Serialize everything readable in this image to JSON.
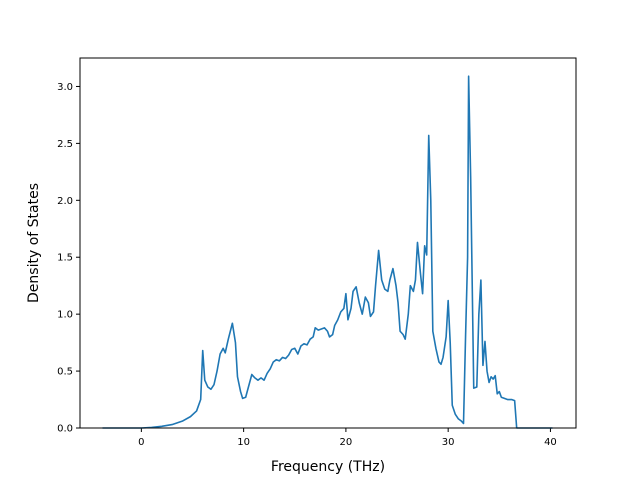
{
  "chart_data": {
    "type": "line",
    "title": "",
    "xlabel": "Frequency (THz)",
    "ylabel": "Density of States",
    "xlim": [
      -6,
      42.5
    ],
    "ylim": [
      0,
      3.25
    ],
    "xticks": [
      0,
      10,
      20,
      30,
      40
    ],
    "yticks": [
      0.0,
      0.5,
      1.0,
      1.5,
      2.0,
      2.5,
      3.0
    ],
    "xtick_labels": [
      "0",
      "10",
      "20",
      "30",
      "40"
    ],
    "ytick_labels": [
      "0.0",
      "0.5",
      "1.0",
      "1.5",
      "2.0",
      "2.5",
      "3.0"
    ],
    "grid": false,
    "legend": "none",
    "line_color": "#1f77b4",
    "series": [
      {
        "points": [
          [
            -3.8,
            0.0
          ],
          [
            -1.0,
            0.0
          ],
          [
            0.0,
            0.0
          ],
          [
            1.0,
            0.005
          ],
          [
            2.0,
            0.015
          ],
          [
            3.0,
            0.03
          ],
          [
            4.0,
            0.06
          ],
          [
            4.8,
            0.1
          ],
          [
            5.4,
            0.15
          ],
          [
            5.8,
            0.25
          ],
          [
            6.0,
            0.68
          ],
          [
            6.2,
            0.42
          ],
          [
            6.5,
            0.36
          ],
          [
            6.8,
            0.34
          ],
          [
            7.1,
            0.38
          ],
          [
            7.4,
            0.5
          ],
          [
            7.7,
            0.65
          ],
          [
            8.0,
            0.7
          ],
          [
            8.2,
            0.66
          ],
          [
            8.5,
            0.78
          ],
          [
            8.9,
            0.92
          ],
          [
            9.2,
            0.75
          ],
          [
            9.4,
            0.45
          ],
          [
            9.7,
            0.32
          ],
          [
            9.9,
            0.26
          ],
          [
            10.2,
            0.27
          ],
          [
            10.5,
            0.37
          ],
          [
            10.8,
            0.47
          ],
          [
            11.1,
            0.44
          ],
          [
            11.4,
            0.42
          ],
          [
            11.7,
            0.44
          ],
          [
            12.0,
            0.42
          ],
          [
            12.3,
            0.48
          ],
          [
            12.6,
            0.52
          ],
          [
            12.9,
            0.58
          ],
          [
            13.2,
            0.6
          ],
          [
            13.5,
            0.59
          ],
          [
            13.8,
            0.62
          ],
          [
            14.1,
            0.61
          ],
          [
            14.4,
            0.64
          ],
          [
            14.7,
            0.69
          ],
          [
            15.0,
            0.7
          ],
          [
            15.3,
            0.65
          ],
          [
            15.6,
            0.72
          ],
          [
            15.9,
            0.74
          ],
          [
            16.2,
            0.73
          ],
          [
            16.5,
            0.78
          ],
          [
            16.8,
            0.8
          ],
          [
            17.0,
            0.88
          ],
          [
            17.3,
            0.86
          ],
          [
            17.6,
            0.87
          ],
          [
            17.9,
            0.88
          ],
          [
            18.2,
            0.85
          ],
          [
            18.4,
            0.8
          ],
          [
            18.7,
            0.82
          ],
          [
            18.9,
            0.9
          ],
          [
            19.2,
            0.95
          ],
          [
            19.5,
            1.02
          ],
          [
            19.8,
            1.05
          ],
          [
            20.0,
            1.18
          ],
          [
            20.2,
            0.95
          ],
          [
            20.5,
            1.05
          ],
          [
            20.7,
            1.2
          ],
          [
            21.0,
            1.24
          ],
          [
            21.3,
            1.1
          ],
          [
            21.6,
            1.0
          ],
          [
            21.9,
            1.15
          ],
          [
            22.2,
            1.1
          ],
          [
            22.4,
            0.98
          ],
          [
            22.7,
            1.02
          ],
          [
            22.9,
            1.25
          ],
          [
            23.2,
            1.56
          ],
          [
            23.5,
            1.3
          ],
          [
            23.8,
            1.22
          ],
          [
            24.1,
            1.2
          ],
          [
            24.3,
            1.3
          ],
          [
            24.6,
            1.4
          ],
          [
            24.9,
            1.25
          ],
          [
            25.1,
            1.1
          ],
          [
            25.3,
            0.85
          ],
          [
            25.6,
            0.82
          ],
          [
            25.8,
            0.78
          ],
          [
            26.1,
            1.0
          ],
          [
            26.3,
            1.25
          ],
          [
            26.6,
            1.2
          ],
          [
            26.8,
            1.3
          ],
          [
            27.0,
            1.63
          ],
          [
            27.3,
            1.35
          ],
          [
            27.5,
            1.18
          ],
          [
            27.7,
            1.6
          ],
          [
            27.9,
            1.52
          ],
          [
            28.1,
            2.57
          ],
          [
            28.3,
            2.0
          ],
          [
            28.5,
            0.85
          ],
          [
            28.8,
            0.7
          ],
          [
            29.1,
            0.58
          ],
          [
            29.3,
            0.56
          ],
          [
            29.5,
            0.62
          ],
          [
            29.8,
            0.8
          ],
          [
            30.0,
            1.12
          ],
          [
            30.2,
            0.75
          ],
          [
            30.4,
            0.2
          ],
          [
            30.7,
            0.12
          ],
          [
            31.0,
            0.08
          ],
          [
            31.3,
            0.06
          ],
          [
            31.5,
            0.04
          ],
          [
            31.7,
            0.8
          ],
          [
            31.9,
            1.5
          ],
          [
            32.0,
            3.09
          ],
          [
            32.2,
            2.2
          ],
          [
            32.5,
            0.35
          ],
          [
            32.8,
            0.36
          ],
          [
            33.0,
            1.0
          ],
          [
            33.2,
            1.3
          ],
          [
            33.4,
            0.55
          ],
          [
            33.6,
            0.76
          ],
          [
            33.8,
            0.5
          ],
          [
            34.0,
            0.4
          ],
          [
            34.2,
            0.45
          ],
          [
            34.4,
            0.43
          ],
          [
            34.6,
            0.46
          ],
          [
            34.8,
            0.3
          ],
          [
            35.0,
            0.32
          ],
          [
            35.2,
            0.27
          ],
          [
            35.5,
            0.26
          ],
          [
            35.8,
            0.25
          ],
          [
            36.2,
            0.25
          ],
          [
            36.5,
            0.24
          ],
          [
            36.7,
            0.0
          ],
          [
            40.2,
            0.0
          ]
        ]
      }
    ]
  }
}
